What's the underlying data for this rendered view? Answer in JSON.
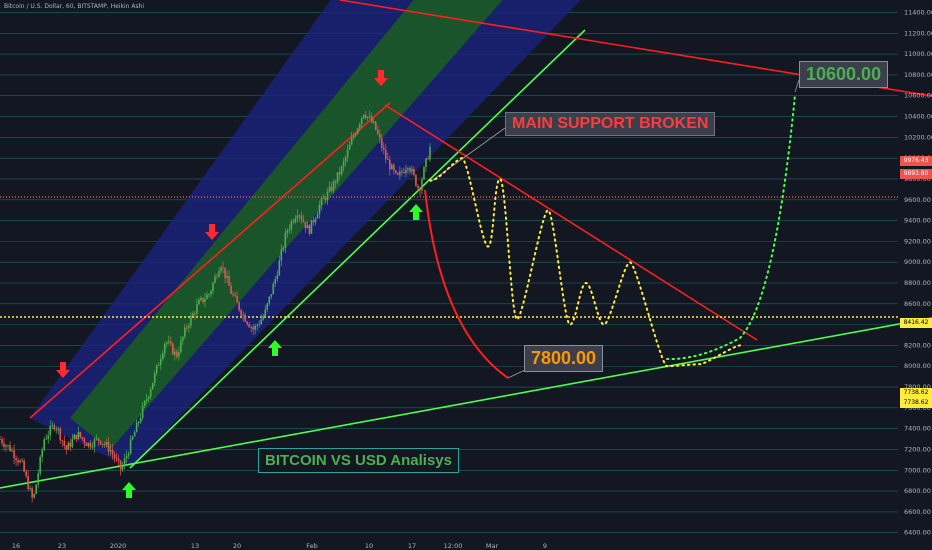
{
  "header": {
    "title": "Bitcoin / U.S. Dollar, 60, BITSTAMP, Heikin Ashi"
  },
  "annotations": {
    "main_support": "MAIN SUPPORT BROKEN",
    "target": "10600.00",
    "low": "7800.00",
    "chart_title": "BITCOIN VS USD Analisys"
  },
  "price_tags": [
    {
      "label": "9976.43",
      "price": 9976.43,
      "bg": "#ef5350",
      "fg": "#ffffff"
    },
    {
      "label": "9893.80",
      "price": 9893.8,
      "bg": "#ef5350",
      "fg": "#ffffff"
    },
    {
      "label": "8416.42",
      "price": 8416.42,
      "bg": "#ffeb3b",
      "fg": "#000000"
    },
    {
      "label": "7738.62",
      "price": 7738.62,
      "bg": "#ffeb3b",
      "fg": "#000000"
    },
    {
      "label": "7738.62",
      "price": 7738.62,
      "bg": "#ffeb3b",
      "fg": "#000000"
    }
  ],
  "colors": {
    "background": "#131722",
    "grid": "#26a69a",
    "up_candle": "#4caf50",
    "down_candle": "#ef5350",
    "resistance": "#ff1e1e",
    "support": "#4cff4c",
    "channel_fill": "#1a237e",
    "channel_inner": "#1b5e20",
    "projection": "#ffeb3b",
    "bull_projection": "#4cff4c"
  },
  "chart_data": {
    "type": "line",
    "title": "Bitcoin / U.S. Dollar, 60, BITSTAMP, Heikin Ashi",
    "y_axis": {
      "ylim": [
        6330,
        11520
      ],
      "ticks": [
        6400,
        6600,
        6800,
        7000,
        7200,
        7400,
        7600,
        7800,
        8000,
        8200,
        8400,
        8600,
        8800,
        9000,
        9200,
        9400,
        9600,
        9800,
        10000,
        10200,
        10400,
        10600,
        10800,
        11000,
        11200,
        11400
      ],
      "tick_labels": [
        "6400.00",
        "6600.00",
        "6800.00",
        "7000.00",
        "7200.00",
        "7400.00",
        "7600.00",
        "7800.00",
        "8000.00",
        "8200.00",
        "8400.00",
        "8600.00",
        "8800.00",
        "9000.00",
        "9200.00",
        "9400.00",
        "9600.00",
        "9800.00",
        "10000.00",
        "10200.00",
        "10400.00",
        "10600.00",
        "10800.00",
        "11000.00",
        "11200.00",
        "11400.00"
      ]
    },
    "x_axis": {
      "tick_labels": [
        "16",
        "23",
        "2020",
        "13",
        "20",
        "Feb",
        "10",
        "17",
        "12:00",
        "Mar",
        "9"
      ],
      "tick_index": [
        0,
        1,
        2,
        3,
        4,
        5,
        6,
        7,
        8,
        9,
        10
      ]
    },
    "grid": true,
    "price_series": {
      "name": "BTCUSD",
      "points": [
        [
          0,
          7300
        ],
        [
          1,
          7200
        ],
        [
          2,
          7050
        ],
        [
          3,
          6700
        ],
        [
          4,
          7300
        ],
        [
          5,
          7450
        ],
        [
          6,
          7200
        ],
        [
          7,
          7350
        ],
        [
          8,
          7250
        ],
        [
          9,
          7300
        ],
        [
          10,
          7200
        ],
        [
          11,
          7000
        ],
        [
          12,
          7300
        ],
        [
          13,
          7600
        ],
        [
          14,
          7900
        ],
        [
          15,
          8250
        ],
        [
          16,
          8100
        ],
        [
          17,
          8400
        ],
        [
          18,
          8600
        ],
        [
          19,
          8700
        ],
        [
          20,
          9000
        ],
        [
          21,
          8700
        ],
        [
          22,
          8500
        ],
        [
          23,
          8350
        ],
        [
          24,
          8500
        ],
        [
          25,
          8850
        ],
        [
          26,
          9300
        ],
        [
          27,
          9500
        ],
        [
          28,
          9300
        ],
        [
          29,
          9550
        ],
        [
          30,
          9700
        ],
        [
          31,
          9900
        ],
        [
          32,
          10200
        ],
        [
          33,
          10450
        ],
        [
          34,
          10300
        ],
        [
          35,
          10000
        ],
        [
          36,
          9800
        ],
        [
          37,
          9950
        ],
        [
          38,
          9700
        ],
        [
          39,
          10100
        ]
      ]
    },
    "projection": {
      "name": "projection",
      "points": [
        [
          40,
          9750
        ],
        [
          41,
          10000
        ],
        [
          42,
          9150
        ],
        [
          43,
          9800
        ],
        [
          44,
          8450
        ],
        [
          45,
          9500
        ],
        [
          46,
          8400
        ],
        [
          47,
          8800
        ],
        [
          48,
          8400
        ],
        [
          49,
          9000
        ],
        [
          50,
          8000
        ],
        [
          51,
          8020
        ],
        [
          52,
          8200
        ],
        [
          53,
          8800
        ],
        [
          54,
          10600
        ]
      ]
    },
    "levels": [
      {
        "label": "8416.42",
        "value": 8416.42
      },
      {
        "label": "10600.00",
        "value": 10600
      },
      {
        "label": "7800.00",
        "value": 7800
      }
    ]
  }
}
